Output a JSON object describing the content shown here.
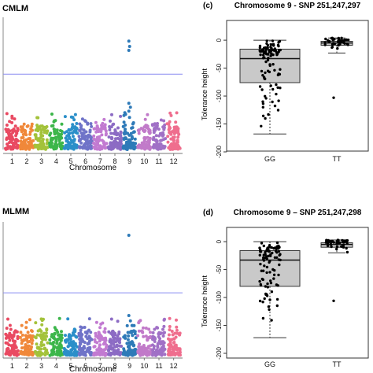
{
  "chart_data": [
    {
      "type": "scatter",
      "subtype": "manhattan",
      "title": "CMLM",
      "xlabel": "Chromosome",
      "x_ticks": [
        "1",
        "2",
        "3",
        "4",
        "5",
        "6",
        "7",
        "8",
        "9",
        "10",
        "11",
        "12"
      ],
      "chromosome_colors": [
        "#e94a62",
        "#f0883a",
        "#a3c23a",
        "#3cb64a",
        "#2b8fc9",
        "#6f73c8",
        "#c27ad1",
        "#8c6bc4",
        "#2e7ab8",
        "#c17ac9",
        "#a070c6",
        "#ef6e8e"
      ],
      "threshold_color": "#8a8cf0",
      "threshold_level": 0.57,
      "peak_chromosome": "9",
      "peak_levels": [
        0.82,
        0.78,
        0.75
      ],
      "secondary_peaks": [
        {
          "chromosome": "9",
          "level": 0.35
        },
        {
          "chromosome": "9",
          "level": 0.32
        },
        {
          "chromosome": "9",
          "level": 0.29
        }
      ]
    },
    {
      "type": "scatter",
      "subtype": "box_strip",
      "panel_label": "(c)",
      "title": "Chromosome 9 - SNP 251,247,297",
      "ylabel": "Tolerance height",
      "categories": [
        "GG",
        "TT"
      ],
      "ylim": [
        -200,
        10
      ],
      "yticks": [
        0,
        -50,
        -100,
        -150,
        -200
      ],
      "box": [
        {
          "group": "GG",
          "min": -168,
          "q1": -76,
          "median": -33,
          "q3": -16,
          "max": 0
        },
        {
          "group": "TT",
          "min": -23,
          "q1": -9,
          "median": -5,
          "q3": -2,
          "max": 4
        }
      ],
      "outliers": [
        {
          "group": "TT",
          "value": -103
        }
      ]
    },
    {
      "type": "scatter",
      "subtype": "manhattan",
      "title": "MLMM",
      "xlabel": "Chromosome",
      "x_ticks": [
        "1",
        "2",
        "3",
        "4",
        "5",
        "6",
        "7",
        "8",
        "9",
        "10",
        "11",
        "12"
      ],
      "chromosome_colors": [
        "#e94a62",
        "#f0883a",
        "#a3c23a",
        "#3cb64a",
        "#2b8fc9",
        "#6f73c8",
        "#c27ad1",
        "#8c6bc4",
        "#2e7ab8",
        "#c17ac9",
        "#a070c6",
        "#ef6e8e"
      ],
      "threshold_color": "#8a8cf0",
      "threshold_level": 0.47,
      "peak_chromosome": "9",
      "peak_levels": [
        0.9
      ],
      "secondary_peaks": [
        {
          "chromosome": "9",
          "level": 0.3
        },
        {
          "chromosome": "9",
          "level": 0.26
        }
      ]
    },
    {
      "type": "scatter",
      "subtype": "box_strip",
      "panel_label": "(d)",
      "title": "Chromosome 9 – SNP 251,247,298",
      "ylabel": "Tolerance height",
      "categories": [
        "GG",
        "TT"
      ],
      "ylim": [
        -200,
        10
      ],
      "yticks": [
        0,
        -50,
        -100,
        -150,
        -200
      ],
      "box": [
        {
          "group": "GG",
          "min": -172,
          "q1": -80,
          "median": -33,
          "q3": -16,
          "max": 0
        },
        {
          "group": "TT",
          "min": -20,
          "q1": -10,
          "median": -5,
          "q3": -2,
          "max": 3
        }
      ],
      "outliers": [
        {
          "group": "TT",
          "value": -106
        }
      ]
    }
  ]
}
